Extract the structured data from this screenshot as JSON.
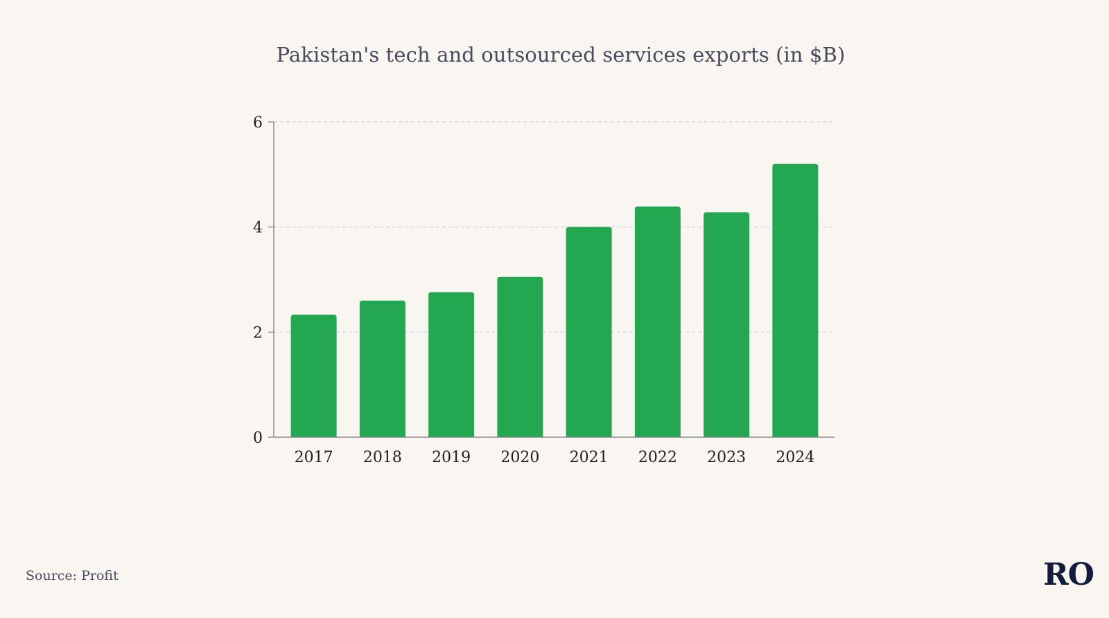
{
  "page": {
    "source": "Source: Profit",
    "logo": "RO"
  },
  "colors": {
    "background": "#f9f6f2",
    "bar": "#23a851",
    "title": "#4a4a5e",
    "axis": "#7a7a7a",
    "gridline": "#cfcfcf",
    "tick_text": "#1e1e1e",
    "logo": "#141c3c"
  },
  "chart_data": {
    "type": "bar",
    "title": "Pakistan's tech and outsourced services exports (in $B)",
    "xlabel": "",
    "ylabel": "",
    "categories": [
      "2017",
      "2018",
      "2019",
      "2020",
      "2021",
      "2022",
      "2023",
      "2024"
    ],
    "values": [
      2.33,
      2.6,
      2.76,
      3.05,
      4.0,
      4.39,
      4.28,
      5.2
    ],
    "ylim": [
      0,
      6
    ],
    "yticks": [
      "0",
      "2",
      "4",
      "6"
    ],
    "grid": "horizontal dashed",
    "legend": "none"
  }
}
